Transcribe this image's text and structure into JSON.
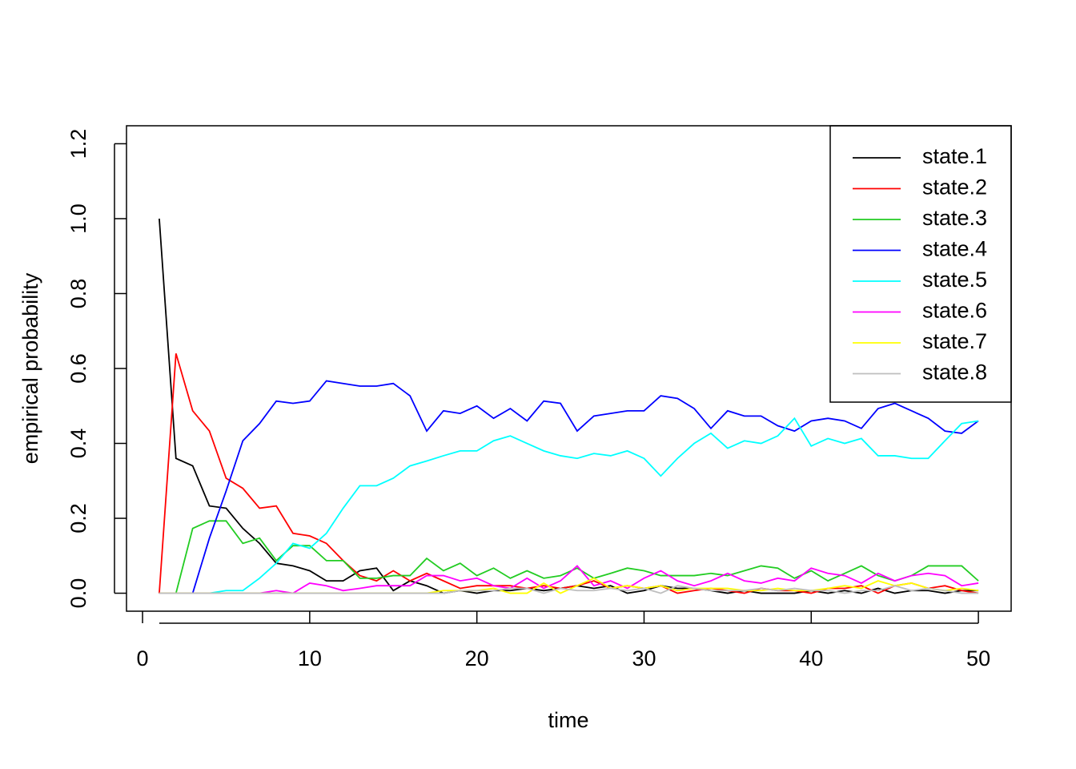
{
  "chart_data": {
    "type": "line",
    "xlabel": "time",
    "ylabel": "empirical probability",
    "x": [
      1,
      2,
      3,
      4,
      5,
      6,
      7,
      8,
      9,
      10,
      11,
      12,
      13,
      14,
      15,
      16,
      17,
      18,
      19,
      20,
      21,
      22,
      23,
      24,
      25,
      26,
      27,
      28,
      29,
      30,
      31,
      32,
      33,
      34,
      35,
      36,
      37,
      38,
      39,
      40,
      41,
      42,
      43,
      44,
      45,
      46,
      47,
      48,
      49,
      50
    ],
    "xlim": [
      -0.96,
      51.96
    ],
    "xticks": [
      0,
      10,
      20,
      30,
      40,
      50
    ],
    "ylim": [
      -0.048,
      1.248
    ],
    "yticks": [
      {
        "value": 0,
        "label": "0.0"
      },
      0.2,
      0.4,
      0.6,
      0.8,
      {
        "value": 1,
        "label": "1.0"
      },
      1.2
    ],
    "legend": "top-right",
    "series": [
      {
        "name": "state.1",
        "color": "#000000",
        "values": [
          1.0,
          0.36,
          0.34,
          0.233,
          0.227,
          0.173,
          0.133,
          0.08,
          0.073,
          0.06,
          0.033,
          0.033,
          0.06,
          0.067,
          0.007,
          0.033,
          0.02,
          0,
          0.007,
          0,
          0.007,
          0.007,
          0.013,
          0.007,
          0.013,
          0.02,
          0.013,
          0.02,
          0,
          0.007,
          0.02,
          0.013,
          0.013,
          0.007,
          0,
          0.007,
          0,
          0,
          0,
          0.007,
          0,
          0.007,
          0,
          0.013,
          0,
          0.007,
          0.007,
          0,
          0.007,
          0.007
        ]
      },
      {
        "name": "state.2",
        "color": "#ff0000",
        "values": [
          0,
          0.64,
          0.487,
          0.433,
          0.307,
          0.28,
          0.227,
          0.233,
          0.16,
          0.153,
          0.133,
          0.087,
          0.047,
          0.033,
          0.06,
          0.033,
          0.053,
          0.033,
          0.013,
          0.02,
          0.02,
          0.02,
          0.013,
          0.02,
          0.013,
          0.02,
          0.033,
          0.013,
          0.02,
          0.013,
          0.02,
          0,
          0.007,
          0.013,
          0.007,
          0,
          0.013,
          0.007,
          0.007,
          0,
          0.013,
          0.013,
          0.02,
          0,
          0.02,
          0.027,
          0.013,
          0.02,
          0.007,
          0
        ]
      },
      {
        "name": "state.3",
        "color": "#22cc22",
        "values": [
          0,
          0,
          0.173,
          0.193,
          0.193,
          0.133,
          0.147,
          0.087,
          0.127,
          0.127,
          0.087,
          0.087,
          0.04,
          0.04,
          0.047,
          0.047,
          0.093,
          0.06,
          0.08,
          0.047,
          0.067,
          0.04,
          0.06,
          0.04,
          0.047,
          0.067,
          0.04,
          0.053,
          0.067,
          0.06,
          0.047,
          0.047,
          0.047,
          0.053,
          0.047,
          0.06,
          0.073,
          0.067,
          0.04,
          0.06,
          0.033,
          0.053,
          0.073,
          0.047,
          0.033,
          0.047,
          0.073,
          0.073,
          0.073,
          0.033
        ]
      },
      {
        "name": "state.4",
        "color": "#0000ff",
        "values": [
          0,
          0,
          0,
          0.147,
          0.273,
          0.407,
          0.453,
          0.513,
          0.507,
          0.513,
          0.567,
          0.56,
          0.553,
          0.553,
          0.56,
          0.527,
          0.433,
          0.487,
          0.48,
          0.5,
          0.467,
          0.493,
          0.46,
          0.513,
          0.507,
          0.433,
          0.473,
          0.48,
          0.487,
          0.487,
          0.527,
          0.52,
          0.493,
          0.44,
          0.487,
          0.473,
          0.473,
          0.447,
          0.433,
          0.46,
          0.467,
          0.46,
          0.44,
          0.493,
          0.507,
          0.487,
          0.467,
          0.433,
          0.427,
          0.46
        ]
      },
      {
        "name": "state.5",
        "color": "#00ffff",
        "values": [
          0,
          0,
          0,
          0,
          0.007,
          0.007,
          0.04,
          0.08,
          0.133,
          0.12,
          0.16,
          0.227,
          0.287,
          0.287,
          0.307,
          0.34,
          0.353,
          0.367,
          0.38,
          0.38,
          0.407,
          0.42,
          0.4,
          0.38,
          0.367,
          0.36,
          0.373,
          0.367,
          0.38,
          0.36,
          0.313,
          0.36,
          0.4,
          0.427,
          0.387,
          0.407,
          0.4,
          0.42,
          0.467,
          0.393,
          0.413,
          0.4,
          0.413,
          0.367,
          0.367,
          0.36,
          0.36,
          0.407,
          0.453,
          0.46
        ]
      },
      {
        "name": "state.6",
        "color": "#ff00ff",
        "values": [
          0,
          0,
          0,
          0,
          0,
          0,
          0,
          0.007,
          0,
          0.027,
          0.02,
          0.007,
          0.013,
          0.02,
          0.02,
          0.02,
          0.047,
          0.047,
          0.033,
          0.04,
          0.02,
          0.013,
          0.04,
          0.013,
          0.033,
          0.073,
          0.02,
          0.033,
          0.013,
          0.04,
          0.06,
          0.033,
          0.02,
          0.033,
          0.053,
          0.033,
          0.027,
          0.04,
          0.033,
          0.067,
          0.053,
          0.047,
          0.027,
          0.053,
          0.033,
          0.047,
          0.053,
          0.047,
          0.02,
          0.027
        ]
      },
      {
        "name": "state.7",
        "color": "#ffff00",
        "values": [
          0,
          0,
          0,
          0,
          0,
          0,
          0,
          0,
          0,
          0,
          0,
          0,
          0,
          0,
          0,
          0,
          0,
          0.007,
          0.007,
          0.007,
          0.013,
          0,
          0,
          0.027,
          0,
          0.02,
          0.04,
          0.013,
          0.02,
          0.013,
          0.02,
          0.007,
          0.013,
          0.013,
          0.013,
          0.007,
          0.007,
          0.013,
          0.007,
          0.007,
          0.013,
          0.02,
          0.013,
          0.033,
          0.02,
          0.027,
          0.013,
          0.007,
          0.013,
          0.007
        ]
      },
      {
        "name": "state.8",
        "color": "#bebebe",
        "values": [
          0,
          0,
          0,
          0,
          0,
          0,
          0,
          0,
          0,
          0,
          0,
          0,
          0,
          0,
          0,
          0,
          0,
          0,
          0.007,
          0.007,
          0.007,
          0.013,
          0.013,
          0,
          0.013,
          0.007,
          0.007,
          0.013,
          0.007,
          0.013,
          0,
          0.02,
          0.013,
          0.007,
          0.007,
          0.007,
          0.013,
          0.007,
          0.013,
          0.007,
          0.007,
          0,
          0.007,
          0.007,
          0.02,
          0.007,
          0.013,
          0.007,
          0,
          0
        ]
      }
    ]
  }
}
